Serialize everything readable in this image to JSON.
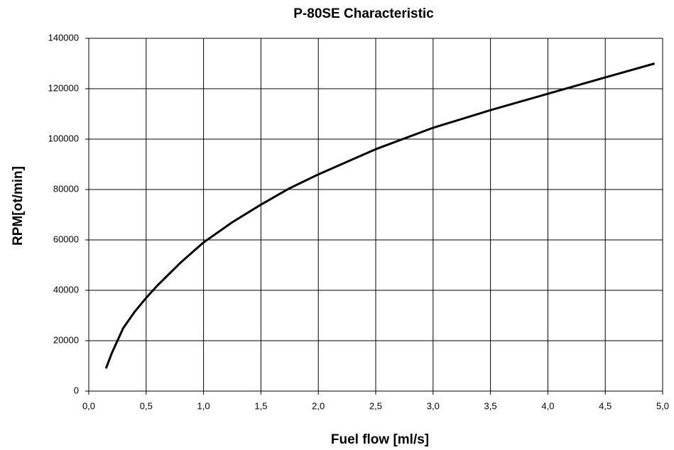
{
  "chart_data": {
    "type": "line",
    "title": "P-80SE Characteristic",
    "x_label": "Fuel flow [ml/s]",
    "y_label": "RPM[ot/min]",
    "x": [
      0.15,
      0.2,
      0.3,
      0.4,
      0.5,
      0.6,
      0.8,
      1.0,
      1.25,
      1.5,
      1.75,
      2.0,
      2.5,
      3.0,
      3.5,
      4.0,
      4.5,
      4.93
    ],
    "values": [
      9000,
      15000,
      25000,
      31500,
      37000,
      42000,
      51000,
      59000,
      67000,
      74000,
      80500,
      86000,
      96000,
      104500,
      111500,
      118000,
      124500,
      130000
    ],
    "color": "#000000",
    "xlim": [
      0,
      5
    ],
    "ylim": [
      0,
      140000
    ],
    "xticks": [
      {
        "value": 0,
        "label": "0,0"
      },
      {
        "value": 0.5,
        "label": "0,5"
      },
      {
        "value": 1,
        "label": "1,0"
      },
      {
        "value": 1.5,
        "label": "1,5"
      },
      {
        "value": 2,
        "label": "2,0"
      },
      {
        "value": 2.5,
        "label": "2,5"
      },
      {
        "value": 3,
        "label": "3,0"
      },
      {
        "value": 3.5,
        "label": "3,5"
      },
      {
        "value": 4,
        "label": "4,0"
      },
      {
        "value": 4.5,
        "label": "4,5"
      },
      {
        "value": 5,
        "label": "5,0"
      }
    ],
    "yticks": [
      0,
      20000,
      40000,
      60000,
      80000,
      100000,
      120000,
      140000
    ],
    "grid": true
  }
}
